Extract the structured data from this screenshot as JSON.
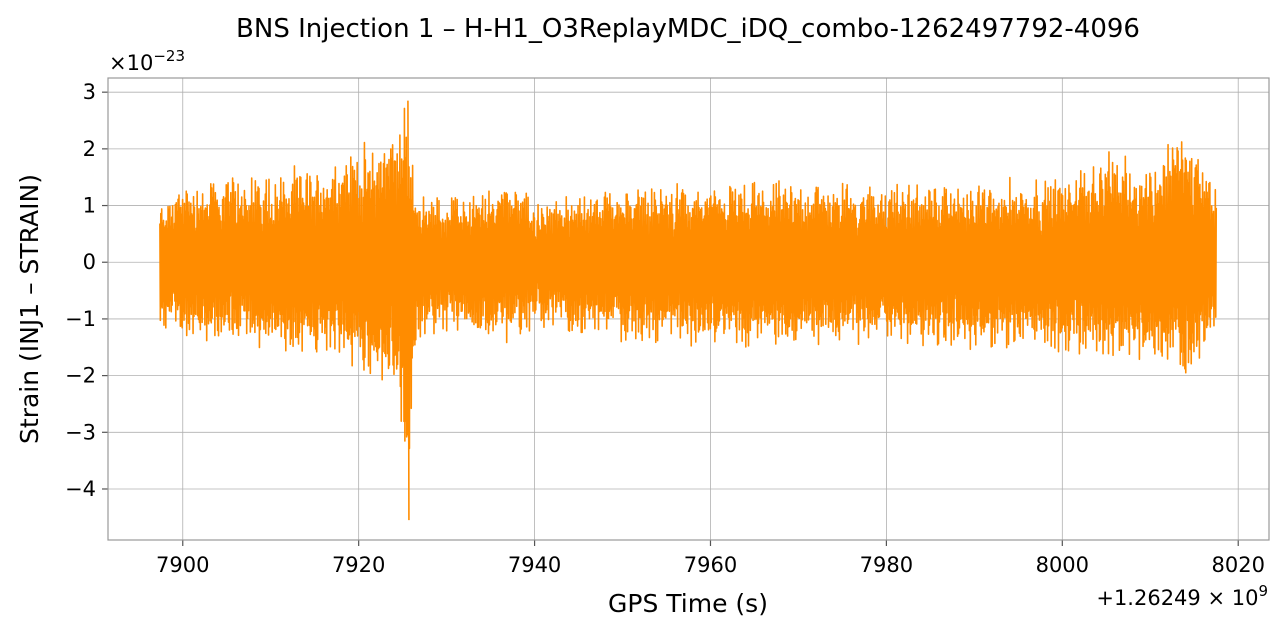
{
  "chart_data": {
    "type": "line",
    "title": "BNS Injection 1 – H-H1_O3ReplayMDC_iDQ_combo-1262497792-4096",
    "xlabel": "GPS Time (s)",
    "ylabel": "Strain (INJ1 – STRAIN)",
    "x_offset_label_base": "+1.26249",
    "x_offset_label_exp": "9",
    "y_multiplier_base": "×10",
    "y_multiplier_exp": "−23",
    "xlim": [
      7891.5,
      8023.5
    ],
    "ylim": [
      -4.9,
      3.25
    ],
    "x_ticks": [
      7900,
      7920,
      7940,
      7960,
      7980,
      8000,
      8020
    ],
    "x_tick_labels": [
      "7900",
      "7920",
      "7940",
      "7960",
      "7980",
      "8000",
      "8020"
    ],
    "y_ticks": [
      -4,
      -3,
      -2,
      -1,
      0,
      1,
      2,
      3
    ],
    "y_tick_labels": [
      "−4",
      "−3",
      "−2",
      "−1",
      "0",
      "1",
      "2",
      "3"
    ],
    "grid": true,
    "series": [
      {
        "color": "#ff8c00",
        "x_start": 7897.4,
        "x_end": 8017.5,
        "envelope": [
          {
            "x": 7897.4,
            "upper": 1.1,
            "lower": -1.2
          },
          {
            "x": 7900,
            "upper": 1.5,
            "lower": -1.4
          },
          {
            "x": 7905,
            "upper": 1.6,
            "lower": -1.5
          },
          {
            "x": 7910,
            "upper": 1.7,
            "lower": -1.6
          },
          {
            "x": 7915,
            "upper": 1.75,
            "lower": -1.7
          },
          {
            "x": 7918,
            "upper": 2.0,
            "lower": -2.1
          },
          {
            "x": 7920,
            "upper": 2.1,
            "lower": -2.0
          },
          {
            "x": 7922,
            "upper": 2.3,
            "lower": -2.2
          },
          {
            "x": 7924,
            "upper": 2.6,
            "lower": -2.4
          },
          {
            "x": 7925.5,
            "upper": 2.85,
            "lower": -4.55
          },
          {
            "x": 7926.5,
            "upper": 1.3,
            "lower": -1.5
          },
          {
            "x": 7930,
            "upper": 1.2,
            "lower": -1.3
          },
          {
            "x": 7935,
            "upper": 1.35,
            "lower": -1.4
          },
          {
            "x": 7937,
            "upper": 1.8,
            "lower": -1.5
          },
          {
            "x": 7940,
            "upper": 1.1,
            "lower": -1.2
          },
          {
            "x": 7950,
            "upper": 1.4,
            "lower": -1.5
          },
          {
            "x": 7960,
            "upper": 1.45,
            "lower": -1.5
          },
          {
            "x": 7970,
            "upper": 1.5,
            "lower": -1.6
          },
          {
            "x": 7980,
            "upper": 1.45,
            "lower": -1.5
          },
          {
            "x": 7990,
            "upper": 1.5,
            "lower": -1.6
          },
          {
            "x": 8000,
            "upper": 1.6,
            "lower": -1.7
          },
          {
            "x": 8005,
            "upper": 2.0,
            "lower": -1.9
          },
          {
            "x": 8010,
            "upper": 1.8,
            "lower": -2.0
          },
          {
            "x": 8014,
            "upper": 2.6,
            "lower": -2.2
          },
          {
            "x": 8017.5,
            "upper": 1.5,
            "lower": -1.3
          }
        ]
      }
    ]
  }
}
